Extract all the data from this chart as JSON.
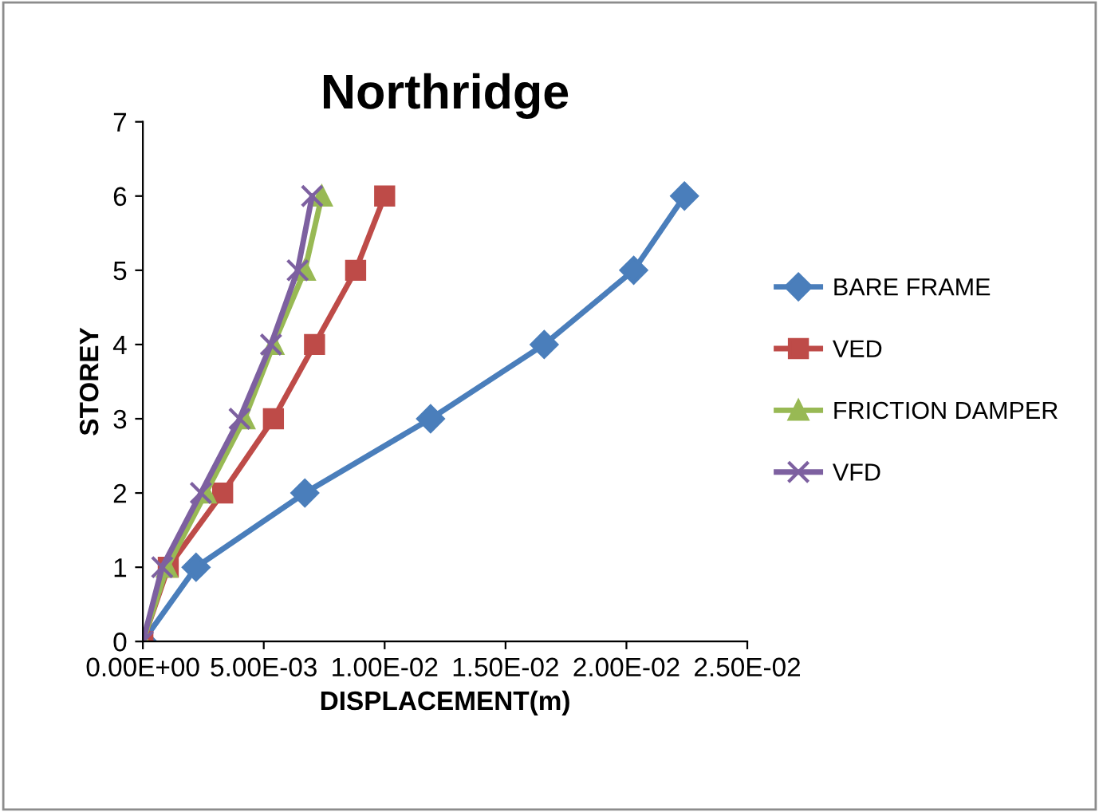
{
  "chart_data": {
    "type": "line",
    "title": "Northridge",
    "xlabel": "DISPLACEMENT(m)",
    "ylabel": "STOREY",
    "xlim": [
      0,
      0.025
    ],
    "xticks": [
      {
        "value": 0,
        "label": "0.00E+00"
      },
      {
        "value": 0.005,
        "label": "5.00E-03"
      },
      {
        "value": 0.01,
        "label": "1.00E-02"
      },
      {
        "value": 0.015,
        "label": "1.50E-02"
      },
      {
        "value": 0.02,
        "label": "2.00E-02"
      },
      {
        "value": 0.025,
        "label": "2.50E-02"
      }
    ],
    "ylim": [
      0,
      7
    ],
    "yticks": [
      0,
      1,
      2,
      3,
      4,
      5,
      6,
      7
    ],
    "grid": false,
    "legend": "right",
    "line_style": "solid",
    "series": [
      {
        "name": "BARE FRAME",
        "color": "#4a7ebb",
        "marker": "diamond",
        "x": [
          0,
          0.0022,
          0.0067,
          0.0119,
          0.0166,
          0.0203,
          0.0224
        ],
        "values": [
          0,
          1,
          2,
          3,
          4,
          5,
          6
        ]
      },
      {
        "name": "VED",
        "color": "#be4b48",
        "marker": "square",
        "x": [
          0,
          0.00105,
          0.0033,
          0.0054,
          0.0071,
          0.0088,
          0.01
        ],
        "values": [
          0,
          1,
          2,
          3,
          4,
          5,
          6
        ]
      },
      {
        "name": "FRICTION DAMPER",
        "color": "#98b954",
        "marker": "triangle",
        "x": [
          0,
          0.001,
          0.0026,
          0.0042,
          0.0054,
          0.0067,
          0.0074
        ],
        "values": [
          0,
          1,
          2,
          3,
          4,
          5,
          6
        ]
      },
      {
        "name": "VFD",
        "color": "#7d60a0",
        "marker": "cross",
        "x": [
          0,
          0.0008,
          0.0024,
          0.004,
          0.0053,
          0.0064,
          0.007
        ],
        "values": [
          0,
          1,
          2,
          3,
          4,
          5,
          6
        ]
      }
    ]
  }
}
